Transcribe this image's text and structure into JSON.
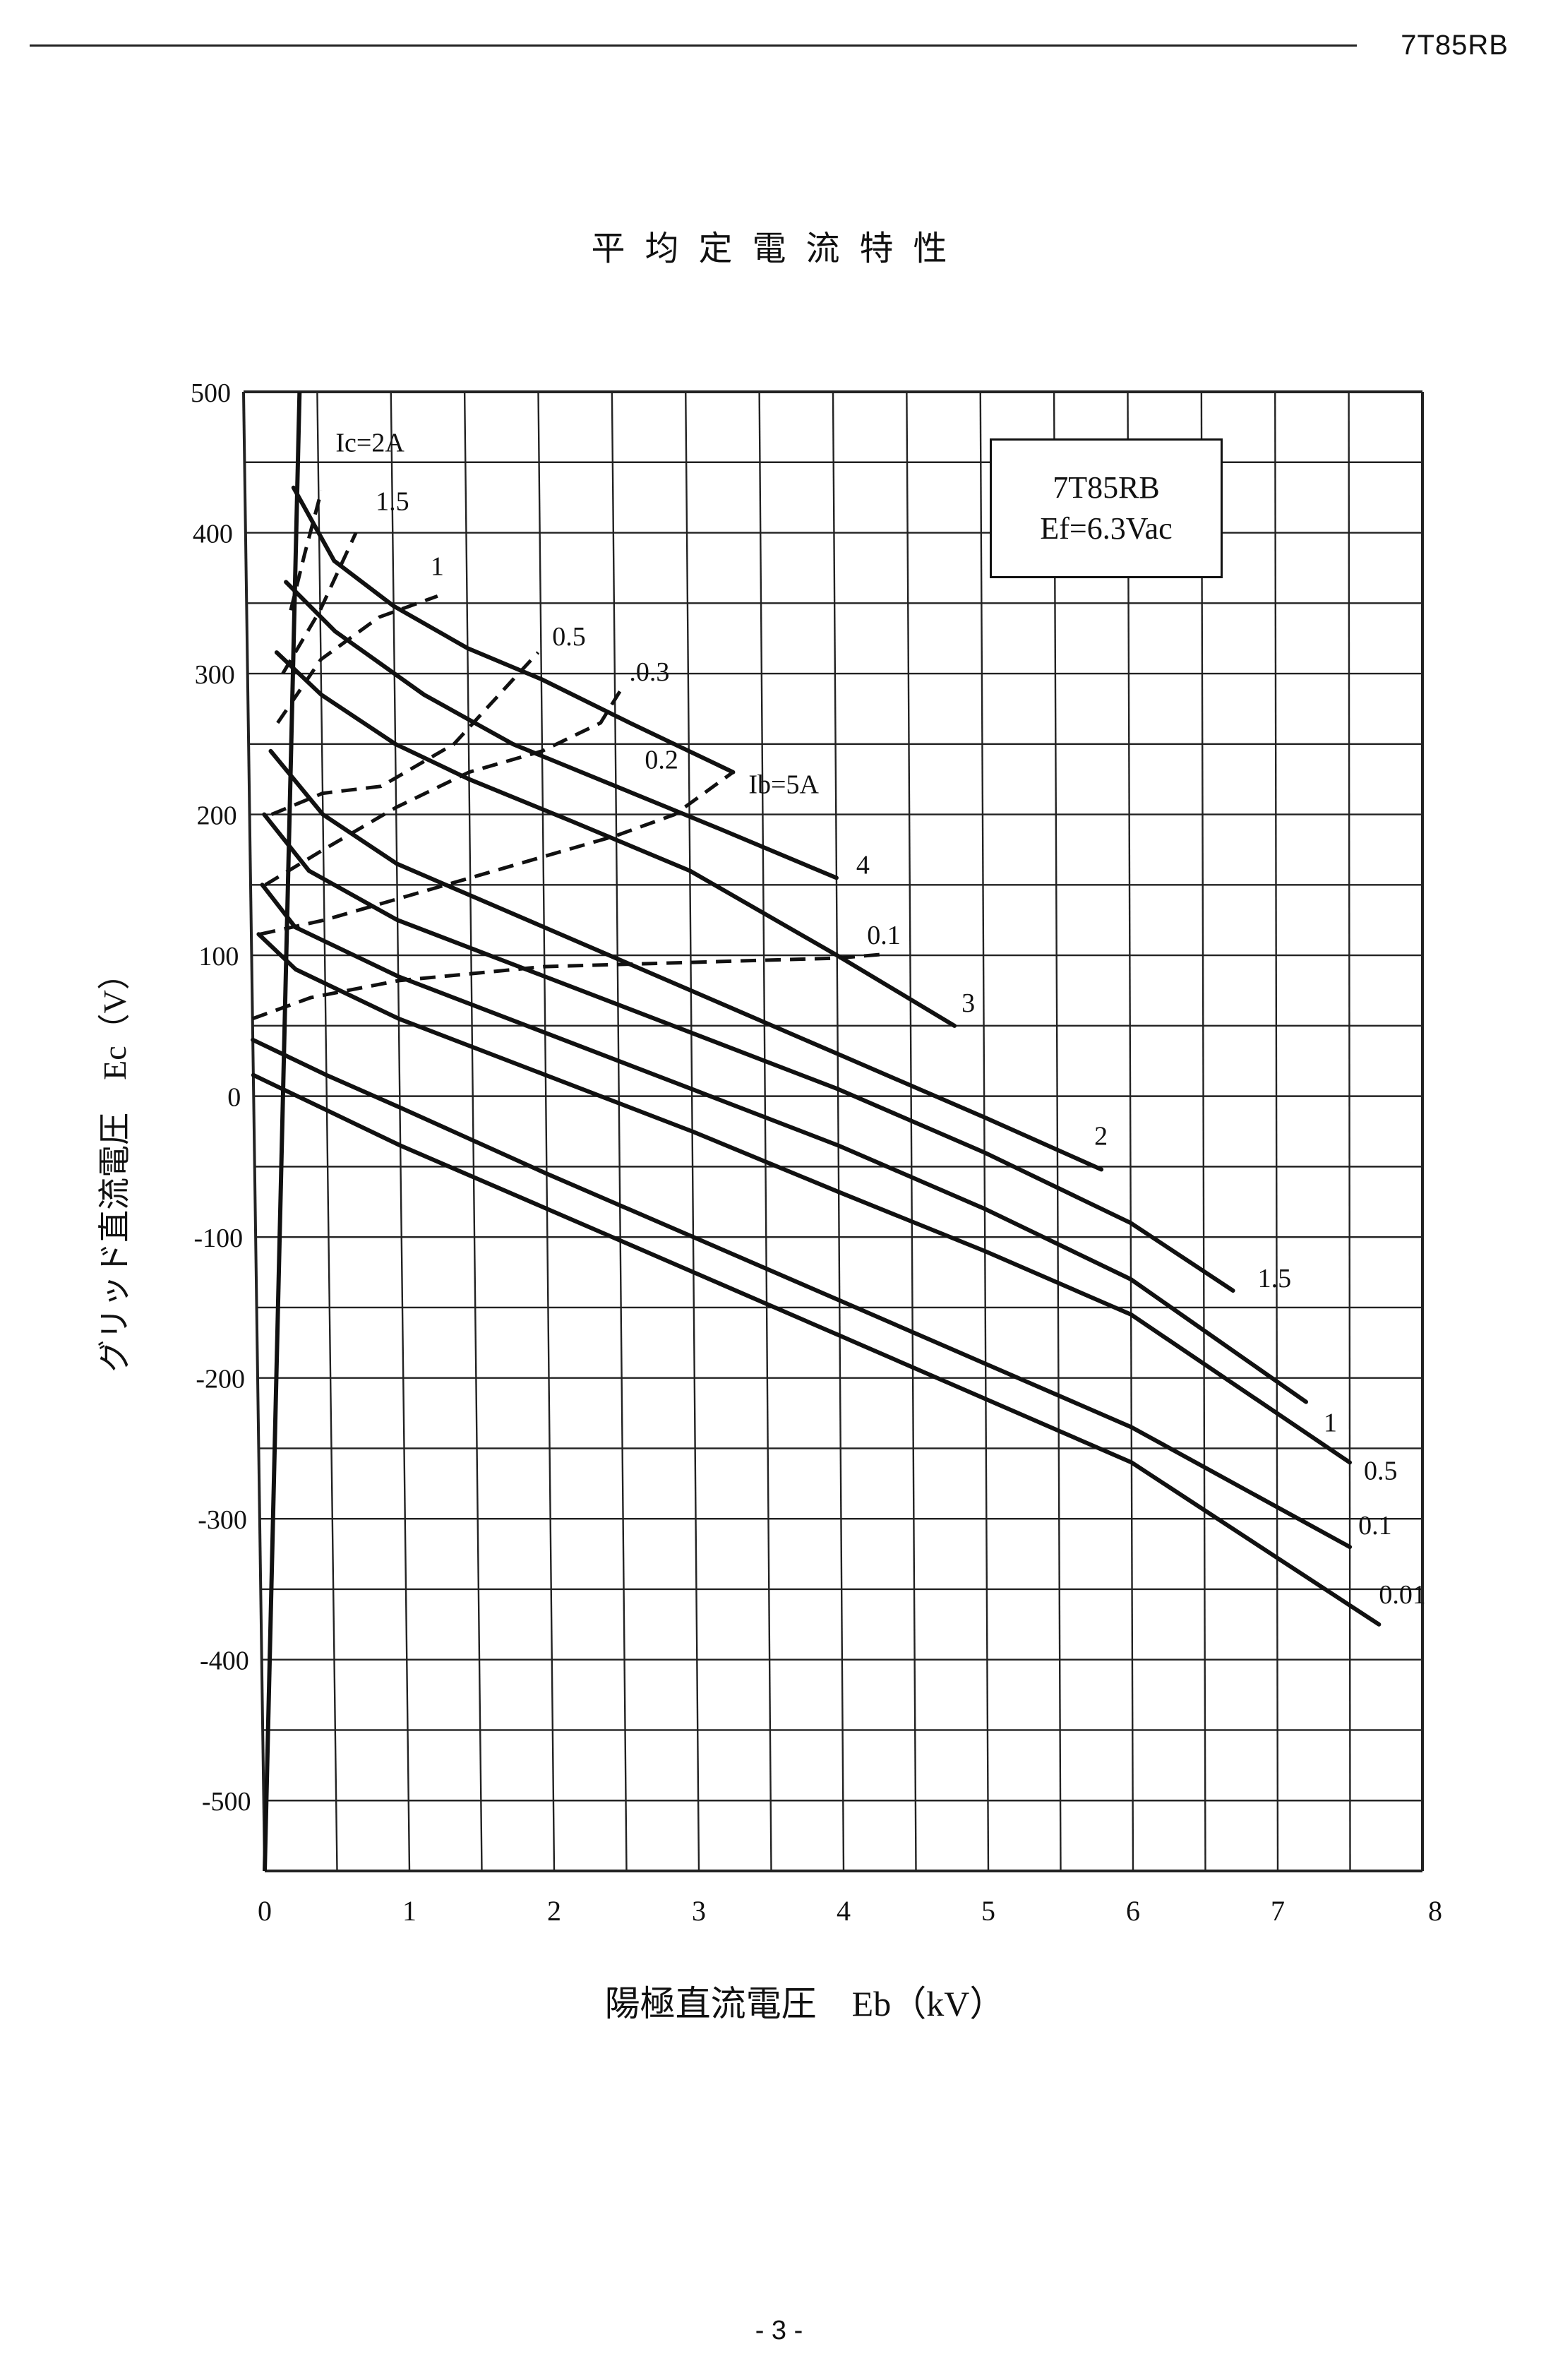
{
  "header": {
    "doc_id": "7T85RB"
  },
  "page": {
    "title": "平均定電流特性",
    "number": "- 3 -"
  },
  "legend": {
    "tube": "7T85RB",
    "filament": "Ef=6.3Vac"
  },
  "chart_data": {
    "type": "line",
    "title": "平均定電流特性",
    "xlabel": "陽極直流電圧　Eb（kV）",
    "ylabel": "グリッド直流電圧　Ec（V）",
    "xlim": [
      0,
      8
    ],
    "ylim": [
      -550,
      500
    ],
    "x_ticks": [
      "0",
      "1",
      "2",
      "3",
      "4",
      "5",
      "6",
      "7",
      "8"
    ],
    "y_ticks": [
      "500",
      "400",
      "300",
      "200",
      "100",
      "0",
      "-100",
      "-200",
      "-300",
      "-400",
      "-500"
    ],
    "grid": true,
    "boundary_line": {
      "x": [
        0,
        0.38
      ],
      "y": [
        -550,
        500
      ]
    },
    "plate_current_series": [
      {
        "name": "Ib=5A",
        "label": "Ib=5A",
        "x": [
          0.33,
          0.6,
          1.0,
          1.5,
          2.0,
          2.6,
          3.3
        ],
        "y": [
          432,
          380,
          348,
          318,
          296,
          265,
          230
        ]
      },
      {
        "name": "Ib=4A",
        "label": "4",
        "x": [
          0.27,
          0.6,
          1.2,
          1.8,
          2.5,
          3.2,
          4.0
        ],
        "y": [
          365,
          330,
          285,
          250,
          220,
          190,
          155
        ]
      },
      {
        "name": "Ib=3A",
        "label": "3",
        "x": [
          0.2,
          0.5,
          1.0,
          1.5,
          2.2,
          3.0,
          4.0,
          4.8
        ],
        "y": [
          315,
          285,
          250,
          225,
          195,
          160,
          100,
          50
        ]
      },
      {
        "name": "Ib=2A",
        "label": "2",
        "x": [
          0.15,
          0.5,
          1.0,
          2.0,
          3.0,
          4.0,
          5.0,
          5.8
        ],
        "y": [
          245,
          200,
          165,
          120,
          75,
          30,
          -15,
          -52
        ]
      },
      {
        "name": "Ib=1.5A",
        "label": "1.5",
        "x": [
          0.1,
          0.4,
          1.0,
          2.0,
          3.0,
          4.0,
          5.0,
          6.0,
          6.7
        ],
        "y": [
          200,
          160,
          125,
          85,
          45,
          5,
          -40,
          -90,
          -138
        ]
      },
      {
        "name": "Ib=1A",
        "label": "1",
        "x": [
          0.08,
          0.3,
          1.0,
          2.0,
          3.0,
          4.0,
          5.0,
          6.0,
          7.2
        ],
        "y": [
          150,
          120,
          85,
          45,
          5,
          -35,
          -80,
          -130,
          -217
        ]
      },
      {
        "name": "Ib=0.5A",
        "label": "0.5",
        "x": [
          0.05,
          0.3,
          1.0,
          2.0,
          3.0,
          4.0,
          5.0,
          6.0,
          7.5
        ],
        "y": [
          115,
          90,
          55,
          15,
          -25,
          -68,
          -110,
          -155,
          -260
        ]
      },
      {
        "name": "Ib=0.1A",
        "label": "0.1",
        "x": [
          0.0,
          0.5,
          1.0,
          2.0,
          3.0,
          4.0,
          5.0,
          6.0,
          7.5
        ],
        "y": [
          40,
          15,
          -8,
          -55,
          -100,
          -145,
          -190,
          -235,
          -320
        ]
      },
      {
        "name": "Ib=0.01A",
        "label": "0.01",
        "x": [
          0.0,
          0.5,
          1.0,
          2.0,
          3.0,
          4.0,
          5.0,
          6.0,
          7.7
        ],
        "y": [
          15,
          -10,
          -35,
          -80,
          -125,
          -170,
          -215,
          -260,
          -375
        ]
      }
    ],
    "grid_current_series": [
      {
        "name": "Ic=2A",
        "label": "Ic=2A",
        "x": [
          0.3,
          0.4,
          0.52
        ],
        "y": [
          345,
          385,
          430
        ]
      },
      {
        "name": "Ic=1.5A",
        "label": "1.5",
        "x": [
          0.24,
          0.5,
          0.75
        ],
        "y": [
          300,
          345,
          400
        ]
      },
      {
        "name": "Ic=1A",
        "label": "1",
        "x": [
          0.2,
          0.5,
          0.9,
          1.3
        ],
        "y": [
          265,
          310,
          340,
          355
        ]
      },
      {
        "name": "Ic=0.5A",
        "label": "0.5",
        "x": [
          0.15,
          0.5,
          0.9,
          1.4,
          1.8,
          1.98
        ],
        "y": [
          200,
          215,
          220,
          250,
          295,
          315
        ]
      },
      {
        "name": "Ic=0.3A",
        "label": ".0.3",
        "x": [
          0.1,
          0.5,
          1.0,
          1.5,
          2.0,
          2.4,
          2.55
        ],
        "y": [
          150,
          175,
          205,
          230,
          245,
          265,
          290
        ]
      },
      {
        "name": "Ic=0.2A",
        "label": "0.2",
        "x": [
          0.06,
          0.5,
          1.0,
          1.5,
          2.0,
          2.5,
          2.9,
          3.3
        ],
        "y": [
          115,
          125,
          140,
          155,
          170,
          185,
          200,
          230
        ]
      },
      {
        "name": "Ic=0.1A",
        "label": "0.1",
        "x": [
          0.0,
          0.4,
          1.0,
          2.0,
          3.0,
          4.0,
          4.35
        ],
        "y": [
          55,
          70,
          82,
          92,
          95,
          98,
          101
        ]
      }
    ]
  }
}
